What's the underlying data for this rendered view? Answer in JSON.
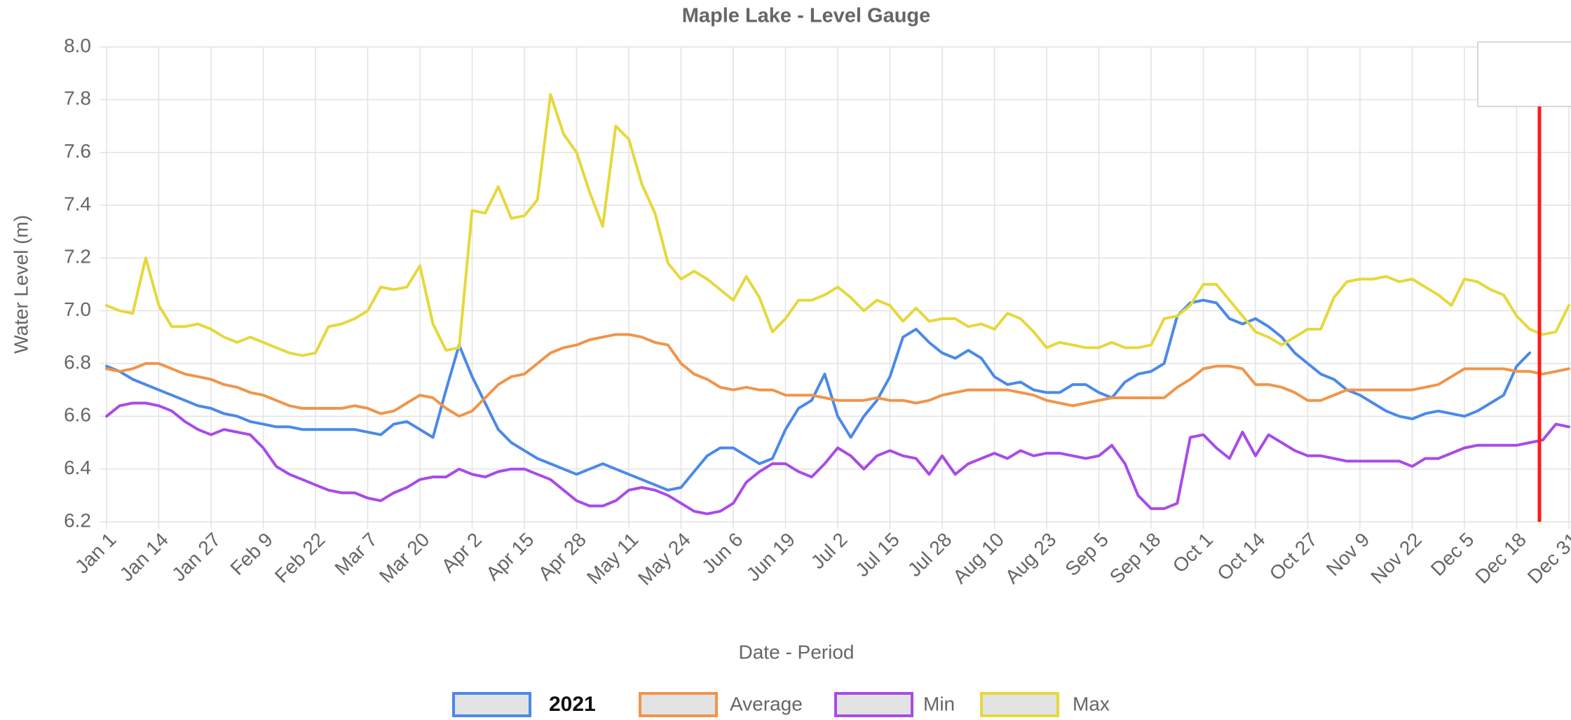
{
  "chart_data": {
    "type": "line",
    "title": "Maple Lake - Level Gauge",
    "xlabel": "Date - Period",
    "ylabel": "Water Level (m)",
    "categories": [
      "Jan 1",
      null,
      null,
      null,
      "Jan 14",
      null,
      null,
      null,
      "Jan 27",
      null,
      null,
      null,
      "Feb 9",
      null,
      null,
      null,
      "Feb 22",
      null,
      null,
      null,
      "Mar 7",
      null,
      null,
      null,
      "Mar 20",
      null,
      null,
      null,
      "Apr 2",
      null,
      null,
      null,
      "Apr 15",
      null,
      null,
      null,
      "Apr 28",
      null,
      null,
      null,
      "May 11",
      null,
      null,
      null,
      "May 24",
      null,
      null,
      null,
      "Jun 6",
      null,
      null,
      null,
      "Jun 19",
      null,
      null,
      null,
      "Jul 2",
      null,
      null,
      null,
      "Jul 15",
      null,
      null,
      null,
      "Jul 28",
      null,
      null,
      null,
      "Aug 10",
      null,
      null,
      null,
      "Aug 23",
      null,
      null,
      null,
      "Sep 5",
      null,
      null,
      null,
      "Sep 18",
      null,
      null,
      null,
      "Oct 1",
      null,
      null,
      null,
      "Oct 14",
      null,
      null,
      null,
      "Oct 27",
      null,
      null,
      null,
      "Nov 9",
      null,
      null,
      null,
      "Nov 22",
      null,
      null,
      null,
      "Dec 5",
      null,
      null,
      null,
      "Dec 18",
      null,
      null,
      null,
      "Dec 31"
    ],
    "series": [
      {
        "name": "2021",
        "color": "#4a8ae8",
        "values": [
          6.79,
          6.77,
          6.74,
          6.72,
          6.7,
          6.68,
          6.66,
          6.64,
          6.63,
          6.61,
          6.6,
          6.58,
          6.57,
          6.56,
          6.56,
          6.55,
          6.55,
          6.55,
          6.55,
          6.55,
          6.54,
          6.53,
          6.57,
          6.58,
          6.55,
          6.52,
          6.7,
          6.87,
          6.75,
          6.65,
          6.55,
          6.5,
          6.47,
          6.44,
          6.42,
          6.4,
          6.38,
          6.4,
          6.42,
          6.4,
          6.38,
          6.36,
          6.34,
          6.32,
          6.33,
          6.39,
          6.45,
          6.48,
          6.48,
          6.45,
          6.42,
          6.44,
          6.55,
          6.63,
          6.66,
          6.76,
          6.6,
          6.52,
          6.6,
          6.66,
          6.75,
          6.9,
          6.93,
          6.88,
          6.84,
          6.82,
          6.85,
          6.82,
          6.75,
          6.72,
          6.73,
          6.7,
          6.69,
          6.69,
          6.72,
          6.72,
          6.69,
          6.67,
          6.73,
          6.76,
          6.77,
          6.8,
          6.98,
          7.03,
          7.04,
          7.03,
          6.97,
          6.95,
          6.97,
          6.94,
          6.9,
          6.84,
          6.8,
          6.76,
          6.74,
          6.7,
          6.68,
          6.65,
          6.62,
          6.6,
          6.59,
          6.61,
          6.62,
          6.61,
          6.6,
          6.62,
          6.65,
          6.68,
          6.79,
          6.84,
          null,
          null,
          null
        ]
      },
      {
        "name": "Average",
        "color": "#f0954a",
        "values": [
          6.78,
          6.77,
          6.78,
          6.8,
          6.8,
          6.78,
          6.76,
          6.75,
          6.74,
          6.72,
          6.71,
          6.69,
          6.68,
          6.66,
          6.64,
          6.63,
          6.63,
          6.63,
          6.63,
          6.64,
          6.63,
          6.61,
          6.62,
          6.65,
          6.68,
          6.67,
          6.63,
          6.6,
          6.62,
          6.67,
          6.72,
          6.75,
          6.76,
          6.8,
          6.84,
          6.86,
          6.87,
          6.89,
          6.9,
          6.91,
          6.91,
          6.9,
          6.88,
          6.87,
          6.8,
          6.76,
          6.74,
          6.71,
          6.7,
          6.71,
          6.7,
          6.7,
          6.68,
          6.68,
          6.68,
          6.67,
          6.66,
          6.66,
          6.66,
          6.67,
          6.66,
          6.66,
          6.65,
          6.66,
          6.68,
          6.69,
          6.7,
          6.7,
          6.7,
          6.7,
          6.69,
          6.68,
          6.66,
          6.65,
          6.64,
          6.65,
          6.66,
          6.67,
          6.67,
          6.67,
          6.67,
          6.67,
          6.71,
          6.74,
          6.78,
          6.79,
          6.79,
          6.78,
          6.72,
          6.72,
          6.71,
          6.69,
          6.66,
          6.66,
          6.68,
          6.7,
          6.7,
          6.7,
          6.7,
          6.7,
          6.7,
          6.71,
          6.72,
          6.75,
          6.78,
          6.78,
          6.78,
          6.78,
          6.77,
          6.77,
          6.76,
          6.77,
          6.78
        ]
      },
      {
        "name": "Min",
        "color": "#a94be8",
        "values": [
          6.6,
          6.64,
          6.65,
          6.65,
          6.64,
          6.62,
          6.58,
          6.55,
          6.53,
          6.55,
          6.54,
          6.53,
          6.48,
          6.41,
          6.38,
          6.36,
          6.34,
          6.32,
          6.31,
          6.31,
          6.29,
          6.28,
          6.31,
          6.33,
          6.36,
          6.37,
          6.37,
          6.4,
          6.38,
          6.37,
          6.39,
          6.4,
          6.4,
          6.38,
          6.36,
          6.32,
          6.28,
          6.26,
          6.26,
          6.28,
          6.32,
          6.33,
          6.32,
          6.3,
          6.27,
          6.24,
          6.23,
          6.24,
          6.27,
          6.35,
          6.39,
          6.42,
          6.42,
          6.39,
          6.37,
          6.42,
          6.48,
          6.45,
          6.4,
          6.45,
          6.47,
          6.45,
          6.44,
          6.38,
          6.45,
          6.38,
          6.42,
          6.44,
          6.46,
          6.44,
          6.47,
          6.45,
          6.46,
          6.46,
          6.45,
          6.44,
          6.45,
          6.49,
          6.42,
          6.3,
          6.25,
          6.25,
          6.27,
          6.52,
          6.53,
          6.48,
          6.44,
          6.54,
          6.45,
          6.53,
          6.5,
          6.47,
          6.45,
          6.45,
          6.44,
          6.43,
          6.43,
          6.43,
          6.43,
          6.43,
          6.41,
          6.44,
          6.44,
          6.46,
          6.48,
          6.49,
          6.49,
          6.49,
          6.49,
          6.5,
          6.51,
          6.57,
          6.56
        ]
      },
      {
        "name": "Max",
        "color": "#e6d83c",
        "values": [
          7.02,
          7.0,
          6.99,
          7.2,
          7.02,
          6.94,
          6.94,
          6.95,
          6.93,
          6.9,
          6.88,
          6.9,
          6.88,
          6.86,
          6.84,
          6.83,
          6.84,
          6.94,
          6.95,
          6.97,
          7.0,
          7.09,
          7.08,
          7.09,
          7.17,
          6.95,
          6.85,
          6.86,
          7.38,
          7.37,
          7.47,
          7.35,
          7.36,
          7.42,
          7.82,
          7.67,
          7.6,
          7.45,
          7.32,
          7.7,
          7.65,
          7.48,
          7.37,
          7.18,
          7.12,
          7.15,
          7.12,
          7.08,
          7.04,
          7.13,
          7.05,
          6.92,
          6.97,
          7.04,
          7.04,
          7.06,
          7.09,
          7.05,
          7.0,
          7.04,
          7.02,
          6.96,
          7.01,
          6.96,
          6.97,
          6.97,
          6.94,
          6.95,
          6.93,
          6.99,
          6.97,
          6.92,
          6.86,
          6.88,
          6.87,
          6.86,
          6.86,
          6.88,
          6.86,
          6.86,
          6.87,
          6.97,
          6.98,
          7.02,
          7.1,
          7.1,
          7.04,
          6.98,
          6.92,
          6.9,
          6.87,
          6.9,
          6.93,
          6.93,
          7.05,
          7.11,
          7.12,
          7.12,
          7.13,
          7.11,
          7.12,
          7.09,
          7.06,
          7.02,
          7.12,
          7.11,
          7.08,
          7.06,
          6.98,
          6.93,
          6.91,
          6.92,
          7.02
        ]
      }
    ],
    "ylim": [
      6.2,
      8.0
    ],
    "yticks": [
      6.2,
      6.4,
      6.6,
      6.8,
      {
        "value": 7,
        "label": "7.0"
      },
      7.2,
      7.4,
      7.6,
      7.8,
      {
        "value": 8,
        "label": "8.0"
      }
    ],
    "grid": true
  }
}
